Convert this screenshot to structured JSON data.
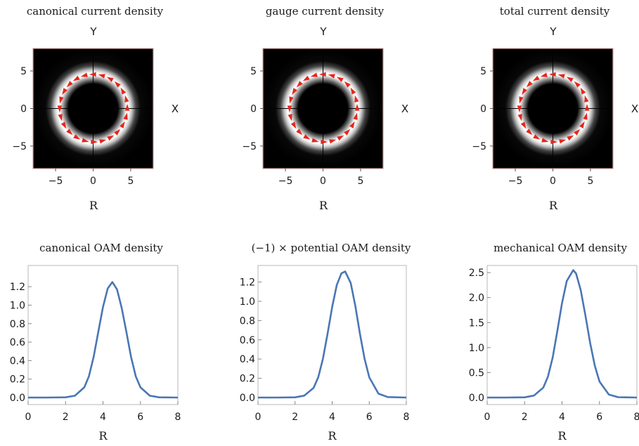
{
  "chart_data": [
    {
      "type": "heatmap",
      "title": "canonical current density",
      "xlabel": "R",
      "ylabel": "Y",
      "side_label": "X",
      "xlim": [
        -8,
        8
      ],
      "ylim": [
        -8,
        8
      ],
      "xticks": [
        -5,
        0,
        5
      ],
      "yticks": [
        5,
        0,
        -5
      ],
      "ring_radius": 4.5,
      "ring_width": 0.9,
      "vector_color": "#e8251b",
      "background_color": "#000000"
    },
    {
      "type": "heatmap",
      "title": "gauge current density",
      "xlabel": "R",
      "ylabel": "Y",
      "side_label": "X",
      "xlim": [
        -8,
        8
      ],
      "ylim": [
        -8,
        8
      ],
      "xticks": [
        -5,
        0,
        5
      ],
      "yticks": [
        5,
        0,
        -5
      ],
      "ring_radius": 4.5,
      "ring_width": 0.9,
      "vector_color": "#e8251b",
      "background_color": "#000000"
    },
    {
      "type": "heatmap",
      "title": "total current density",
      "xlabel": "R",
      "ylabel": "Y",
      "side_label": "X",
      "xlim": [
        -8,
        8
      ],
      "ylim": [
        -8,
        8
      ],
      "xticks": [
        -5,
        0,
        5
      ],
      "yticks": [
        5,
        0,
        -5
      ],
      "ring_radius": 4.5,
      "ring_width": 0.9,
      "vector_color": "#e8251b",
      "background_color": "#000000"
    },
    {
      "type": "line",
      "title": "canonical OAM density",
      "xlabel": "R",
      "xlim": [
        0,
        8
      ],
      "ylim": [
        0,
        1.3
      ],
      "xticks": [
        "0",
        "2",
        "4",
        "6",
        "8"
      ],
      "yticks": [
        "0.0",
        "0.2",
        "0.4",
        "0.6",
        "0.8",
        "1.0",
        "1.2"
      ],
      "line_color": "#4a76b5",
      "x": [
        0,
        1,
        2,
        2.5,
        3,
        3.25,
        3.5,
        3.75,
        4,
        4.25,
        4.5,
        4.75,
        5,
        5.25,
        5.5,
        5.75,
        6,
        6.5,
        7,
        8
      ],
      "y": [
        0,
        0,
        0.002,
        0.02,
        0.11,
        0.23,
        0.44,
        0.71,
        0.98,
        1.18,
        1.25,
        1.17,
        0.97,
        0.71,
        0.44,
        0.23,
        0.11,
        0.02,
        0.002,
        0
      ]
    },
    {
      "type": "line",
      "title": "(−1) × potential OAM density",
      "xlabel": "R",
      "xlim": [
        0,
        8
      ],
      "ylim": [
        0,
        1.35
      ],
      "xticks": [
        "0",
        "2",
        "4",
        "6",
        "8"
      ],
      "yticks": [
        "0.0",
        "0.2",
        "0.4",
        "0.6",
        "0.8",
        "1.0",
        "1.2"
      ],
      "line_color": "#4a76b5",
      "x": [
        0,
        1,
        2,
        2.5,
        3,
        3.25,
        3.5,
        3.75,
        4,
        4.25,
        4.5,
        4.7,
        5,
        5.25,
        5.5,
        5.75,
        6,
        6.5,
        7,
        8
      ],
      "y": [
        0,
        0,
        0.002,
        0.02,
        0.1,
        0.21,
        0.4,
        0.66,
        0.94,
        1.17,
        1.29,
        1.31,
        1.19,
        0.95,
        0.66,
        0.4,
        0.21,
        0.04,
        0.005,
        0
      ]
    },
    {
      "type": "line",
      "title": "mechanical OAM density",
      "xlabel": "R",
      "xlim": [
        0,
        8
      ],
      "ylim": [
        0,
        2.6
      ],
      "xticks": [
        "0",
        "2",
        "4",
        "6",
        "8"
      ],
      "yticks": [
        "0.0",
        "0.5",
        "1.0",
        "1.5",
        "2.0",
        "2.5"
      ],
      "line_color": "#4a76b5",
      "x": [
        0,
        1,
        2,
        2.5,
        3,
        3.25,
        3.5,
        3.75,
        4,
        4.25,
        4.6,
        4.75,
        5,
        5.25,
        5.5,
        5.75,
        6,
        6.5,
        7,
        8
      ],
      "y": [
        0,
        0,
        0.004,
        0.04,
        0.2,
        0.42,
        0.8,
        1.33,
        1.89,
        2.33,
        2.55,
        2.48,
        2.15,
        1.64,
        1.1,
        0.64,
        0.32,
        0.06,
        0.007,
        0
      ]
    }
  ]
}
